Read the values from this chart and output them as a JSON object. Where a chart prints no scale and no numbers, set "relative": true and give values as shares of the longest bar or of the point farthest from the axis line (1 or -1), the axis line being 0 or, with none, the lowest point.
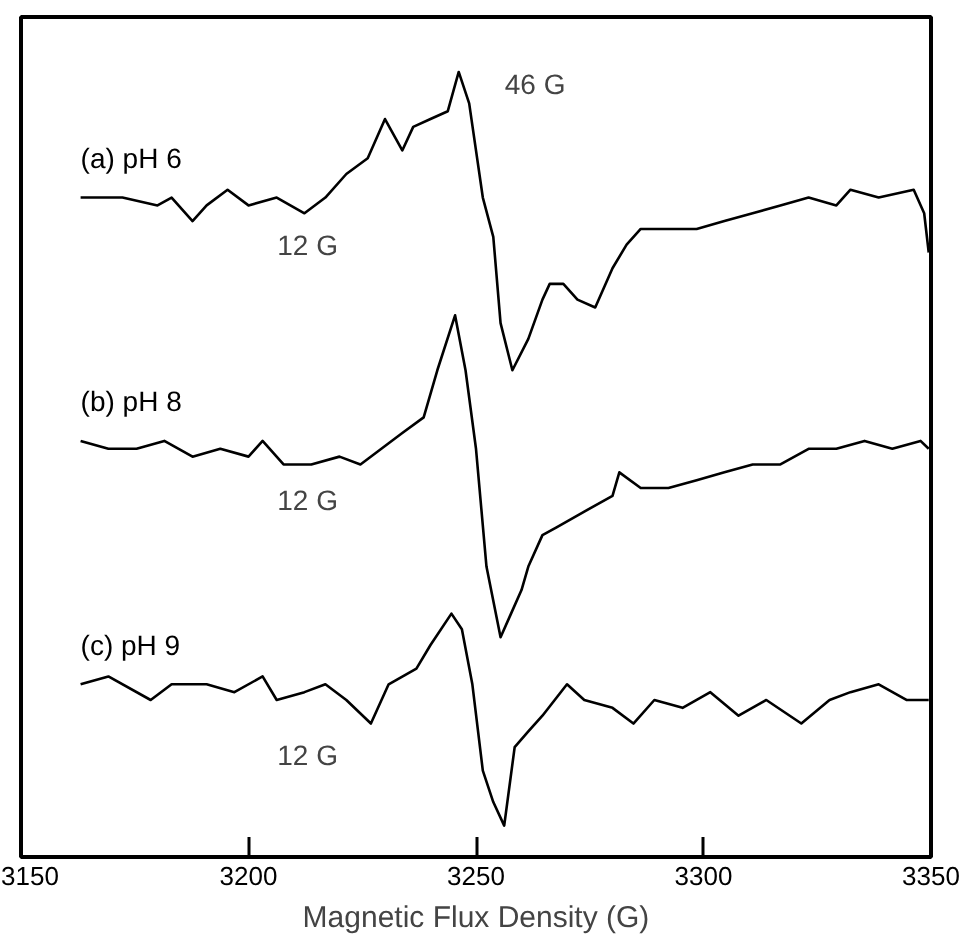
{
  "chart_data": {
    "type": "line",
    "relative": true,
    "xlabel": "Magnetic Flux Density (G)",
    "xlim": [
      3150,
      3350
    ],
    "xticks": [
      3150,
      3200,
      3250,
      3300,
      3350
    ],
    "tick_labels": "x",
    "grid": false,
    "marker": "none",
    "line_style": "solid",
    "series": [
      {
        "name": "(a) pH 6",
        "color": "#000000",
        "x": [
          3163.1,
          3172.3,
          3180.0,
          3183.1,
          3187.7,
          3190.8,
          3195.4,
          3200.0,
          3206.2,
          3212.3,
          3216.9,
          3221.5,
          3226.2,
          3230.0,
          3233.8,
          3236.2,
          3240.0,
          3243.8,
          3246.2,
          3248.5,
          3251.5,
          3253.8,
          3255.4,
          3258.0,
          3261.5,
          3264.6,
          3266.2,
          3269.2,
          3272.3,
          3276.2,
          3280.0,
          3283.1,
          3286.2,
          3292.3,
          3298.5,
          3304.6,
          3310.8,
          3316.9,
          3323.1,
          3329.2,
          3332.3,
          3338.5,
          3346.2,
          3348.5,
          3349.5
        ],
        "values": [
          0.84,
          0.84,
          0.83,
          0.84,
          0.81,
          0.83,
          0.85,
          0.83,
          0.84,
          0.82,
          0.84,
          0.87,
          0.89,
          0.94,
          0.9,
          0.93,
          0.94,
          0.95,
          1.0,
          0.96,
          0.84,
          0.79,
          0.68,
          0.62,
          0.66,
          0.71,
          0.73,
          0.73,
          0.71,
          0.7,
          0.75,
          0.78,
          0.8,
          0.8,
          0.8,
          0.81,
          0.82,
          0.83,
          0.84,
          0.83,
          0.85,
          0.84,
          0.85,
          0.82,
          0.77
        ]
      },
      {
        "name": "(b) pH 8",
        "color": "#000000",
        "x": [
          3163.1,
          3169.2,
          3175.4,
          3181.5,
          3187.7,
          3193.8,
          3200.0,
          3203.1,
          3207.7,
          3213.8,
          3220.0,
          3224.6,
          3229.2,
          3233.8,
          3238.5,
          3241.5,
          3245.4,
          3247.7,
          3250.0,
          3252.3,
          3255.4,
          3257.7,
          3260.0,
          3261.5,
          3264.6,
          3267.7,
          3273.8,
          3280.0,
          3281.5,
          3286.2,
          3292.3,
          3298.5,
          3304.6,
          3310.8,
          3316.9,
          3323.1,
          3329.2,
          3335.4,
          3341.5,
          3347.7,
          3349.5
        ],
        "values": [
          0.53,
          0.52,
          0.52,
          0.53,
          0.51,
          0.52,
          0.51,
          0.53,
          0.5,
          0.5,
          0.51,
          0.5,
          0.52,
          0.54,
          0.56,
          0.62,
          0.69,
          0.62,
          0.52,
          0.37,
          0.28,
          0.31,
          0.34,
          0.37,
          0.41,
          0.42,
          0.44,
          0.46,
          0.49,
          0.47,
          0.47,
          0.48,
          0.49,
          0.5,
          0.5,
          0.52,
          0.52,
          0.53,
          0.52,
          0.53,
          0.52
        ]
      },
      {
        "name": "(c) pH 9",
        "color": "#000000",
        "x": [
          3163.1,
          3169.2,
          3178.5,
          3183.1,
          3190.8,
          3196.9,
          3203.1,
          3206.2,
          3212.3,
          3216.9,
          3221.5,
          3226.9,
          3230.8,
          3236.9,
          3240.0,
          3244.6,
          3246.9,
          3249.2,
          3251.5,
          3253.8,
          3256.2,
          3258.5,
          3261.5,
          3264.6,
          3270.0,
          3273.8,
          3280.0,
          3284.6,
          3289.2,
          3295.4,
          3301.5,
          3307.7,
          3313.8,
          3321.5,
          3327.7,
          3332.3,
          3338.5,
          3344.6,
          3349.5
        ],
        "values": [
          0.22,
          0.23,
          0.2,
          0.22,
          0.22,
          0.21,
          0.23,
          0.2,
          0.21,
          0.22,
          0.2,
          0.17,
          0.22,
          0.24,
          0.27,
          0.31,
          0.29,
          0.22,
          0.11,
          0.07,
          0.04,
          0.14,
          0.16,
          0.18,
          0.22,
          0.2,
          0.19,
          0.17,
          0.2,
          0.19,
          0.21,
          0.18,
          0.2,
          0.17,
          0.2,
          0.21,
          0.22,
          0.2,
          0.2
        ]
      }
    ],
    "annotations": [
      "46 G",
      "12 G",
      "12 G",
      "12 G"
    ]
  }
}
